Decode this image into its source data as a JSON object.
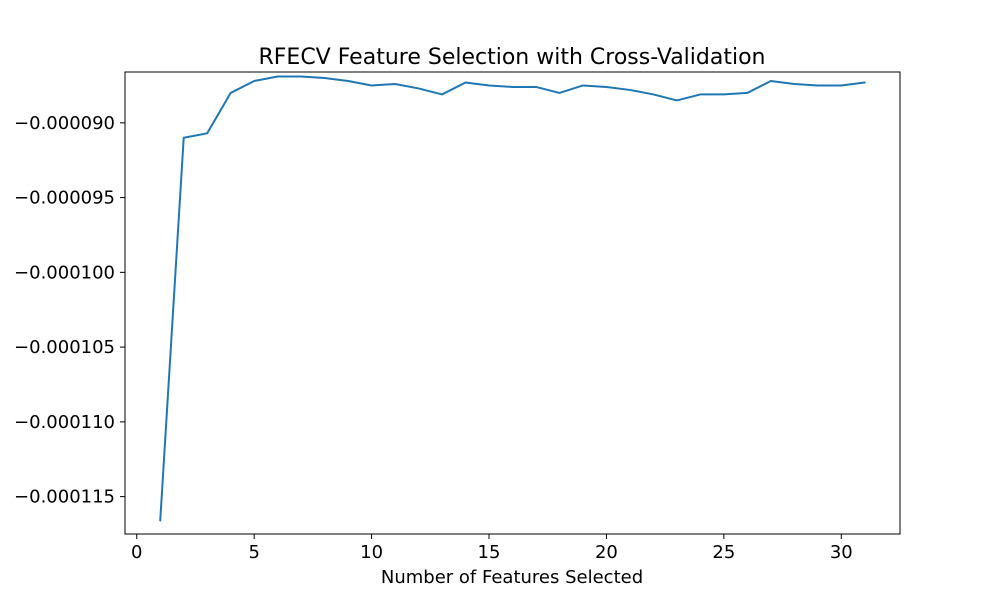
{
  "chart_data": {
    "type": "line",
    "title": "RFECV Feature Selection with Cross-Validation",
    "xlabel": "Number of Features Selected",
    "ylabel": "",
    "xlim": [
      -0.5,
      32.5
    ],
    "ylim": [
      -0.0001175,
      -8.66e-05
    ],
    "xticks": [
      0,
      5,
      10,
      15,
      20,
      25,
      30
    ],
    "yticks": [
      -9e-05,
      -9.5e-05,
      -0.0001,
      -0.000105,
      -0.00011,
      -0.000115
    ],
    "xtick_labels": [
      "0",
      "5",
      "10",
      "15",
      "20",
      "25",
      "30"
    ],
    "ytick_labels": [
      "−0.000090",
      "−0.000095",
      "−0.000100",
      "−0.000105",
      "−0.000110",
      "−0.000115"
    ],
    "grid": false,
    "series": [
      {
        "color": "#1f77b4",
        "x": [
          1,
          2,
          3,
          4,
          5,
          6,
          7,
          8,
          9,
          10,
          11,
          12,
          13,
          14,
          15,
          16,
          17,
          18,
          19,
          20,
          21,
          22,
          23,
          24,
          25,
          26,
          27,
          28,
          29,
          30,
          31
        ],
        "y": [
          -0.0001166,
          -9.1e-05,
          -9.07e-05,
          -8.8e-05,
          -8.72e-05,
          -8.69e-05,
          -8.69e-05,
          -8.7e-05,
          -8.72e-05,
          -8.75e-05,
          -8.74e-05,
          -8.77e-05,
          -8.81e-05,
          -8.73e-05,
          -8.75e-05,
          -8.76e-05,
          -8.76e-05,
          -8.8e-05,
          -8.75e-05,
          -8.76e-05,
          -8.78e-05,
          -8.81e-05,
          -8.85e-05,
          -8.81e-05,
          -8.81e-05,
          -8.8e-05,
          -8.72e-05,
          -8.74e-05,
          -8.75e-05,
          -8.75e-05,
          -8.73e-05
        ]
      }
    ]
  }
}
